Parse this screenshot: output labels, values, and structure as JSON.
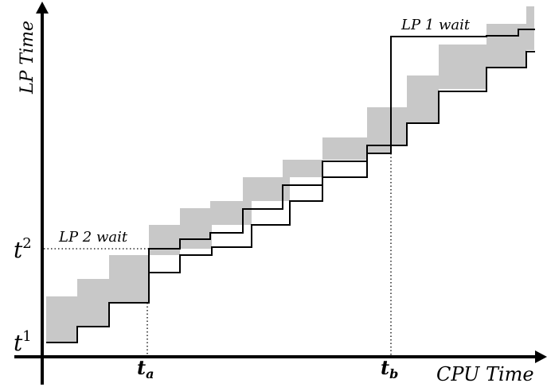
{
  "axes": {
    "x_label": "CPU Time",
    "y_label": "LP Time"
  },
  "y_ticks": {
    "t1": {
      "base": "t",
      "sup": "1"
    },
    "t2": {
      "base": "t",
      "sup": "2"
    }
  },
  "x_ticks": {
    "ta": {
      "base": "t",
      "sub": "a"
    },
    "tb": {
      "base": "t",
      "sub": "b"
    }
  },
  "annotations": {
    "lp2_wait": "LP 2 wait",
    "lp1_wait": "LP 1 wait"
  },
  "colors": {
    "band_fill": "#c8c8c8",
    "axis": "#000000",
    "line": "#000000"
  }
}
